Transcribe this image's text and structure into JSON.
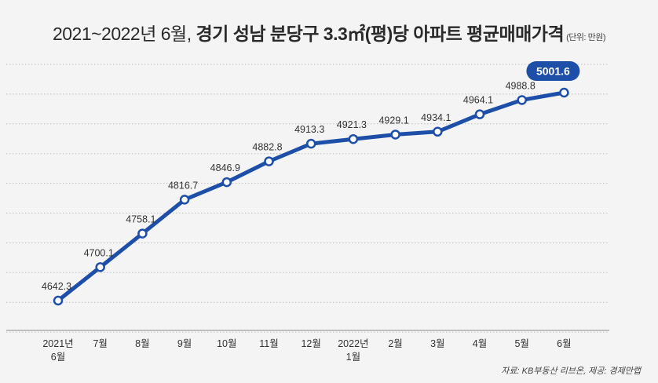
{
  "title": {
    "period": "2021~2022년 6월,",
    "main": "경기 성남 분당구 3.3㎡(평)당 아파트 평균매매가격",
    "unit": "(단위: 만원)"
  },
  "source": "자료: KB부동산 리브온, 제공: 경제만랩",
  "colors": {
    "line": "#1e4fa8",
    "highlight": "#1e4fa8",
    "grid": "#bdbdbd",
    "background": "#f4f4f4"
  },
  "chart_data": {
    "type": "line",
    "title": "2021~2022년 6월, 경기 성남 분당구 3.3㎡(평)당 아파트 평균매매가격",
    "unit": "만원",
    "categories": [
      [
        "2021년",
        "6월"
      ],
      [
        "7월"
      ],
      [
        "8월"
      ],
      [
        "9월"
      ],
      [
        "10월"
      ],
      [
        "11월"
      ],
      [
        "12월"
      ],
      [
        "2022년",
        "1월"
      ],
      [
        "2월"
      ],
      [
        "3월"
      ],
      [
        "4월"
      ],
      [
        "5월"
      ],
      [
        "6월"
      ]
    ],
    "values": [
      4642.3,
      4700.1,
      4758.1,
      4816.7,
      4846.9,
      4882.8,
      4913.3,
      4921.3,
      4929.1,
      4934.1,
      4964.1,
      4988.8,
      5001.6
    ],
    "value_labels": [
      "4642.3",
      "4700.1",
      "4758.1",
      "4816.7",
      "4846.9",
      "4882.8",
      "4913.3",
      "4921.3",
      "4929.1",
      "4934.1",
      "4964.1",
      "4988.8",
      "5001.6"
    ],
    "highlight_index": 12,
    "ylim": [
      4620,
      5040
    ],
    "grid": true,
    "gridlines": 10
  }
}
